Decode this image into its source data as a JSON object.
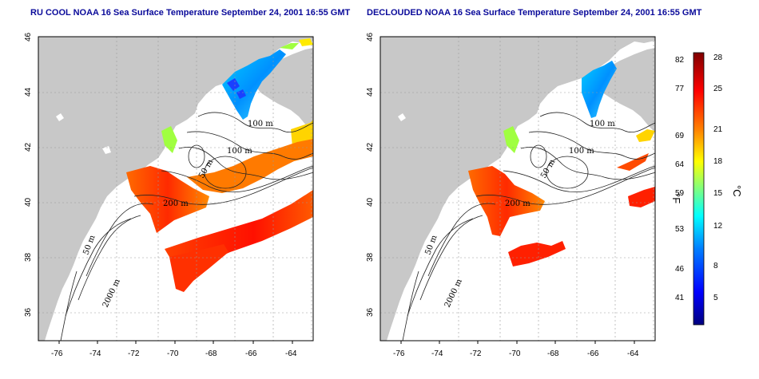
{
  "panels": [
    {
      "title": "RU COOL NOAA 16 Sea Surface Temperature September 24, 2001 16:55 GMT",
      "contour_labels": [
        "100 m",
        "100 m",
        "50 m",
        "200 m",
        "50 m",
        "2000 m"
      ]
    },
    {
      "title": "DECLOUDED NOAA 16 Sea Surface Temperature September 24, 2001 16:55 GMT",
      "contour_labels": [
        "100 m",
        "100 m",
        "50 m",
        "200 m",
        "50 m",
        "2000 m"
      ]
    }
  ],
  "axes": {
    "longitude_ticks": [
      "-76",
      "-74",
      "-72",
      "-70",
      "-68",
      "-66",
      "-64"
    ],
    "latitude_ticks": [
      "36",
      "38",
      "40",
      "42",
      "44",
      "46"
    ]
  },
  "colorbar": {
    "fahrenheit_ticks": [
      "82",
      "77",
      "69",
      "64",
      "59",
      "53",
      "46",
      "41"
    ],
    "celsius_ticks": [
      "28",
      "25",
      "21",
      "18",
      "15",
      "12",
      "8",
      "5"
    ],
    "fahrenheit_unit": "°F",
    "celsius_unit": "°C",
    "gradient_colors": [
      "#00007f",
      "#0000ff",
      "#007fff",
      "#00ffff",
      "#7fff7f",
      "#ffff00",
      "#ff7f00",
      "#ff0000",
      "#7f0000"
    ]
  },
  "colors": {
    "land": "#c8c8c8",
    "ocean": "#ffffff",
    "title": "#0a0a9a",
    "grid": "#9a9a9a"
  }
}
